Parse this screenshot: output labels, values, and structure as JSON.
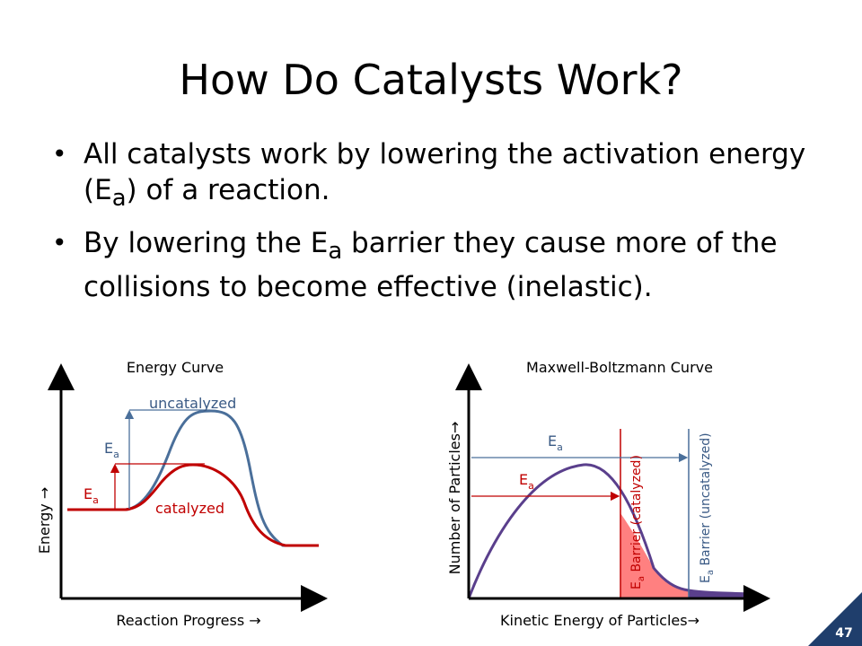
{
  "slide": {
    "title": "How Do Catalysts Work?",
    "bullets": [
      {
        "parts": [
          "All catalysts work by lowering the activation energy (E",
          "a",
          ") of a reaction."
        ]
      },
      {
        "parts": [
          "By lowering the E",
          "a",
          " barrier they cause more of the collisions to become effective (inelastic)."
        ]
      }
    ],
    "page_number": "47"
  },
  "energy_curve": {
    "title": "Energy Curve",
    "xlabel": "Reaction Progress →",
    "ylabel": "Energy →",
    "uncatalyzed_label": "uncatalyzed",
    "catalyzed_label": "catalyzed",
    "ea_main": "E",
    "ea_sub": "a"
  },
  "mb_curve": {
    "title": "Maxwell-Boltzmann Curve",
    "xlabel": "Kinetic Energy of Particles→",
    "ylabel": "Number of Particles→",
    "ea_main": "E",
    "ea_sub": "a",
    "barrier_catalyzed": " Barrier (catalyzed)",
    "barrier_uncatalyzed": " Barrier (uncatalyzed)"
  },
  "colors": {
    "blue": "#4a6f9a",
    "red": "#c00000",
    "purple": "#5a3f8c",
    "pink": "#ff8080",
    "label_blue": "#3a5a85",
    "badge": "#1f3e6c"
  }
}
